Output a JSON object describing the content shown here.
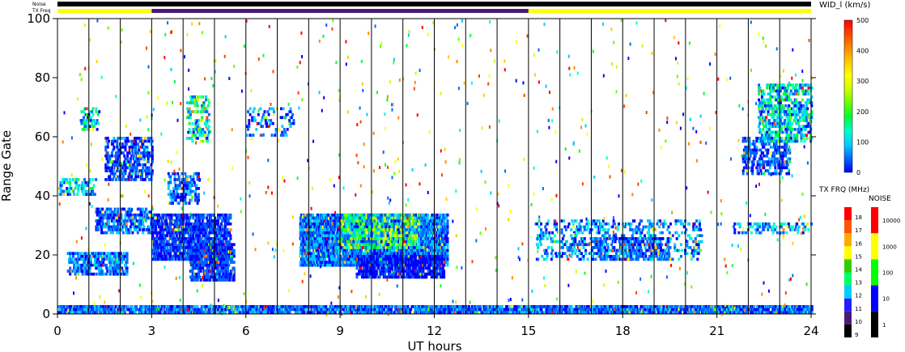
{
  "chart_data": {
    "type": "heatmap",
    "xlabel": "UT hours",
    "ylabel": "Range Gate",
    "xlim": [
      0,
      24
    ],
    "ylim": [
      0,
      100
    ],
    "x_ticks": [
      "0",
      "3",
      "6",
      "9",
      "12",
      "15",
      "18",
      "21",
      "24"
    ],
    "y_ticks": [
      "0",
      "20",
      "40",
      "60",
      "80",
      "100"
    ],
    "hour_lines": [
      1,
      2,
      3,
      4,
      5,
      6,
      7,
      8,
      9,
      10,
      11,
      12,
      13,
      14,
      15,
      16,
      17,
      18,
      19,
      20,
      21,
      22,
      23
    ],
    "top_bars": {
      "noise_label": "Noise",
      "txfreq_label": "TX Freq",
      "segments": [
        {
          "from": 0,
          "to": 3,
          "color": "#ffff00"
        },
        {
          "from": 3,
          "to": 15,
          "color": "#4b1a78"
        },
        {
          "from": 15,
          "to": 24,
          "color": "#ffff00"
        }
      ]
    },
    "main_colorbar": {
      "title": "WID_l (km/s)",
      "min": 0,
      "max": 500,
      "ticks": [
        "0",
        "100",
        "200",
        "300",
        "400",
        "500"
      ],
      "colors": [
        "#0000ff",
        "#0066ff",
        "#00ccff",
        "#00ffcc",
        "#00ff33",
        "#66ff00",
        "#ccff00",
        "#ffff00",
        "#ffcc00",
        "#ff8800",
        "#ff4400",
        "#ff0000"
      ]
    },
    "txfreq_colorbar": {
      "title": "TX FRQ (MHz)",
      "ticks": [
        "9",
        "10",
        "11",
        "12",
        "13",
        "14",
        "15",
        "16",
        "17",
        "18"
      ],
      "colors": [
        "#000000",
        "#4b1a78",
        "#2020ff",
        "#00ccff",
        "#00ff66",
        "#33cc00",
        "#ffff00",
        "#ffaa00",
        "#ff5500",
        "#ff0000"
      ]
    },
    "noise_colorbar": {
      "title": "NOISE",
      "ticks": [
        "1",
        "10",
        "100",
        "1000",
        "10000"
      ],
      "colors": [
        "#000000",
        "#0000ff",
        "#00ff00",
        "#ffff00",
        "#ff0000"
      ]
    },
    "blobs": [
      {
        "t0": 0.0,
        "t1": 24.0,
        "g0": 0,
        "g1": 3,
        "density": 0.8,
        "wid": 60
      },
      {
        "t0": 0.3,
        "t1": 2.2,
        "g0": 13,
        "g1": 21,
        "density": 0.55,
        "wid": 70
      },
      {
        "t0": 1.2,
        "t1": 3.0,
        "g0": 27,
        "g1": 36,
        "density": 0.5,
        "wid": 60
      },
      {
        "t0": 1.5,
        "t1": 3.0,
        "g0": 45,
        "g1": 60,
        "density": 0.45,
        "wid": 50
      },
      {
        "t0": 0.0,
        "t1": 1.2,
        "g0": 40,
        "g1": 46,
        "density": 0.35,
        "wid": 100
      },
      {
        "t0": 0.7,
        "t1": 1.3,
        "g0": 62,
        "g1": 70,
        "density": 0.35,
        "wid": 110
      },
      {
        "t0": 3.0,
        "t1": 5.5,
        "g0": 18,
        "g1": 34,
        "density": 0.65,
        "wid": 40
      },
      {
        "t0": 4.2,
        "t1": 5.6,
        "g0": 11,
        "g1": 24,
        "density": 0.7,
        "wid": 40
      },
      {
        "t0": 3.5,
        "t1": 4.5,
        "g0": 37,
        "g1": 48,
        "density": 0.35,
        "wid": 60
      },
      {
        "t0": 4.1,
        "t1": 4.8,
        "g0": 58,
        "g1": 74,
        "density": 0.35,
        "wid": 160
      },
      {
        "t0": 7.7,
        "t1": 12.4,
        "g0": 16,
        "g1": 34,
        "density": 0.8,
        "wid": 70
      },
      {
        "t0": 9.0,
        "t1": 11.5,
        "g0": 22,
        "g1": 34,
        "density": 0.55,
        "wid": 170
      },
      {
        "t0": 9.5,
        "t1": 12.3,
        "g0": 12,
        "g1": 20,
        "density": 0.7,
        "wid": 30
      },
      {
        "t0": 15.2,
        "t1": 20.5,
        "g0": 18,
        "g1": 32,
        "density": 0.22,
        "wid": 80
      },
      {
        "t0": 17.0,
        "t1": 19.5,
        "g0": 18,
        "g1": 26,
        "density": 0.4,
        "wid": 60
      },
      {
        "t0": 21.8,
        "t1": 23.3,
        "g0": 47,
        "g1": 60,
        "density": 0.45,
        "wid": 50
      },
      {
        "t0": 22.3,
        "t1": 24.0,
        "g0": 58,
        "g1": 78,
        "density": 0.45,
        "wid": 120
      },
      {
        "t0": 21.5,
        "t1": 24.0,
        "g0": 27,
        "g1": 31,
        "density": 0.3,
        "wid": 90
      },
      {
        "t0": 6.0,
        "t1": 7.5,
        "g0": 60,
        "g1": 70,
        "density": 0.18,
        "wid": 60
      }
    ]
  }
}
